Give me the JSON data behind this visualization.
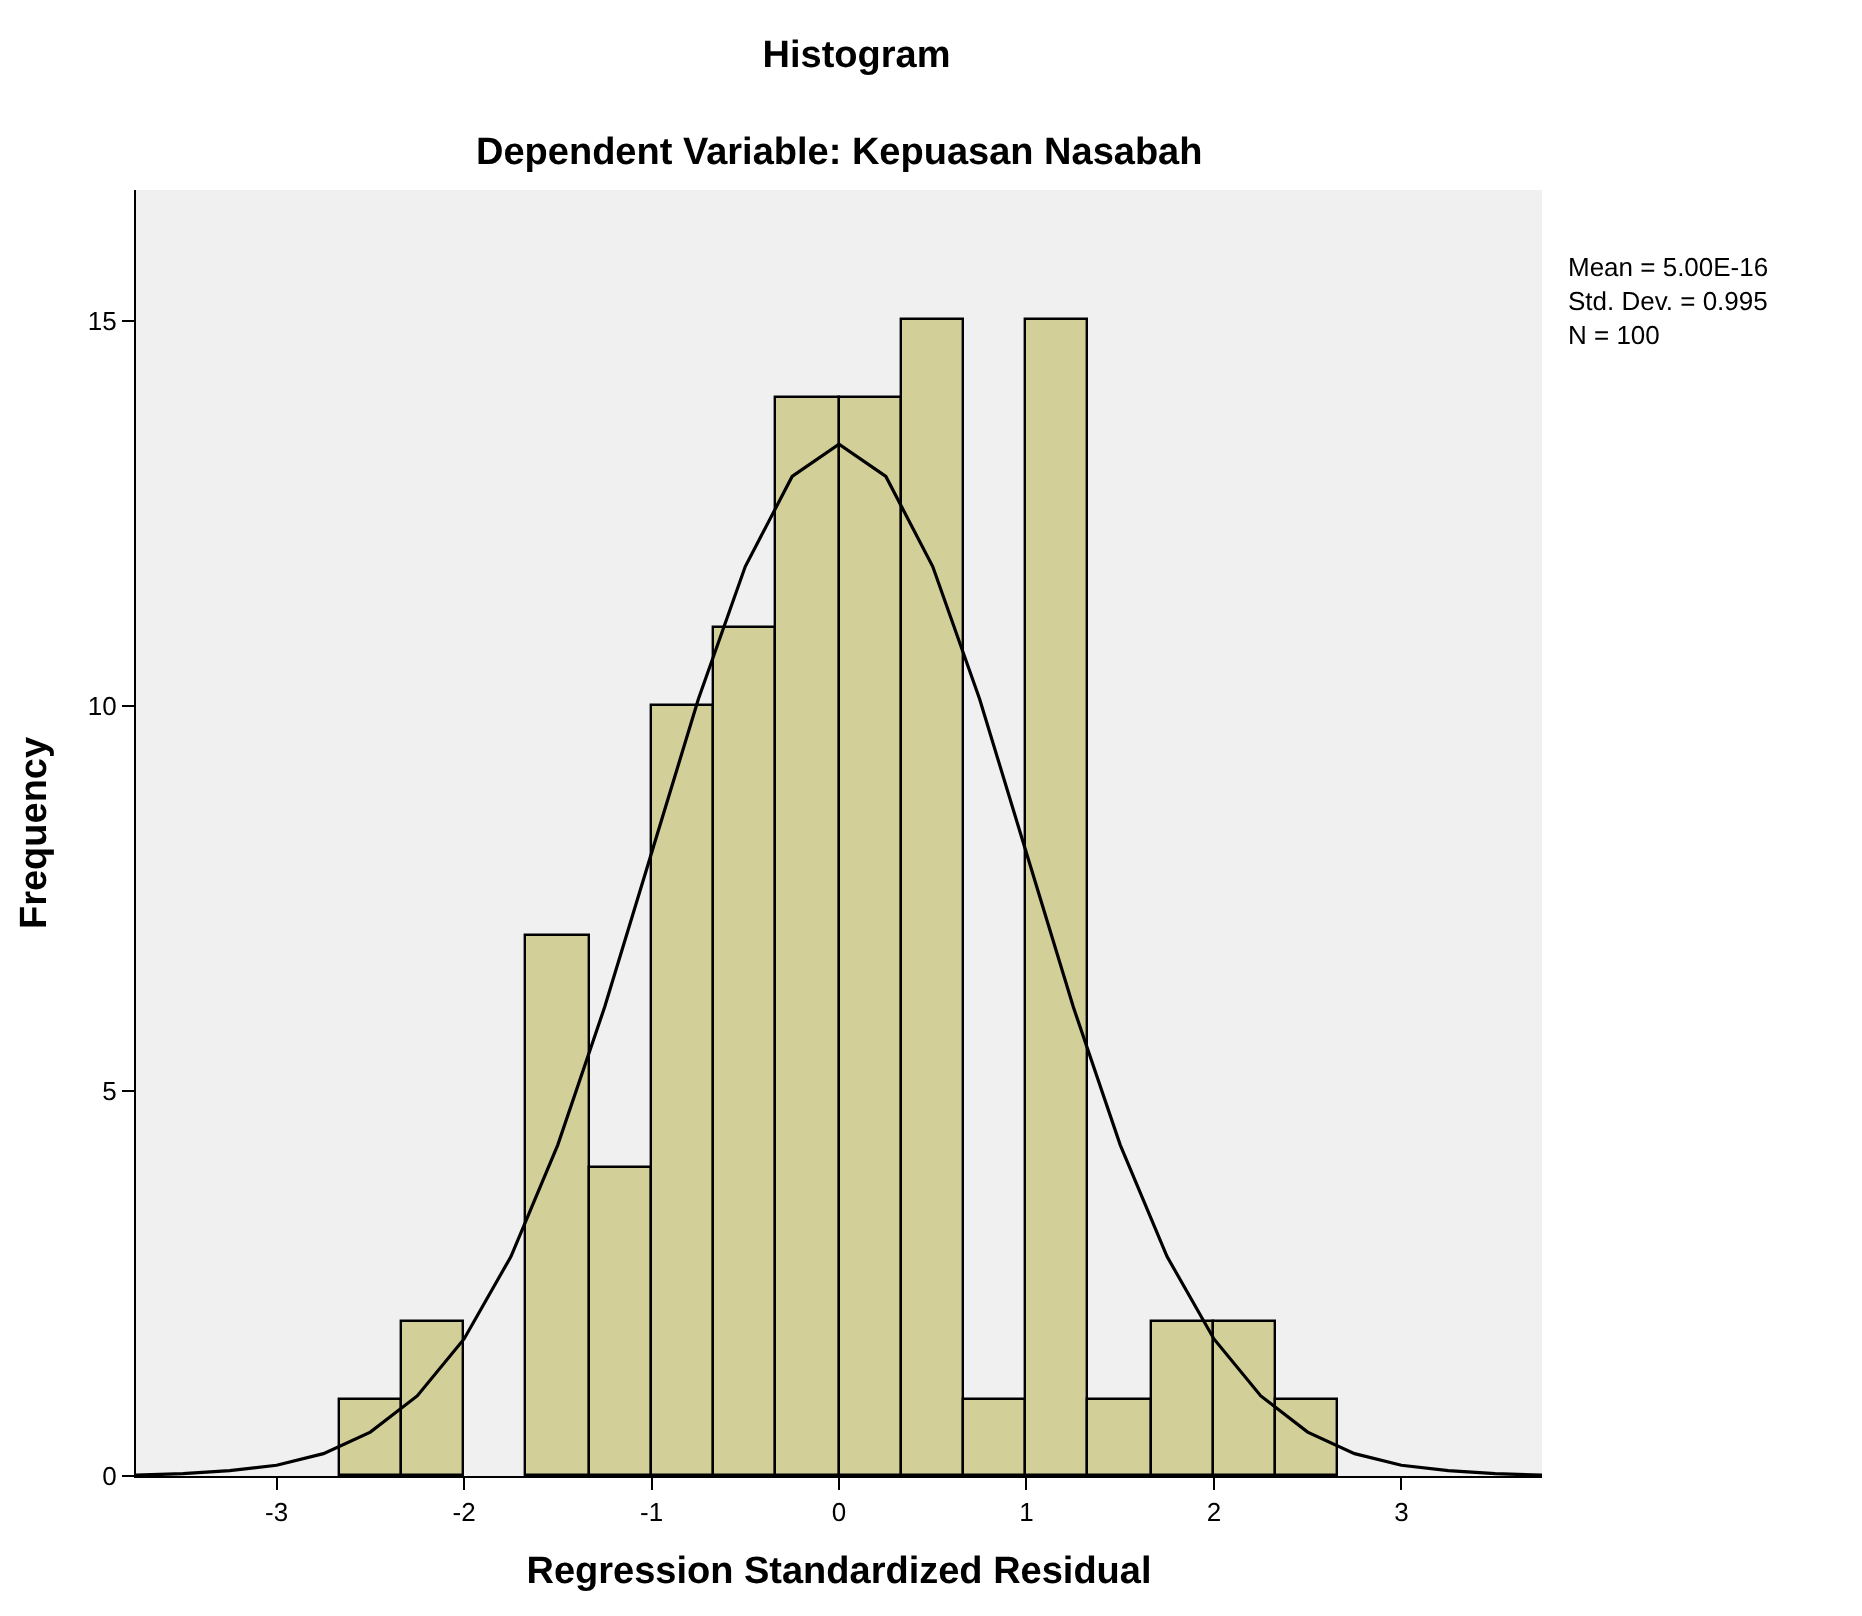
{
  "chart_data": {
    "type": "histogram",
    "title": "Histogram",
    "subtitle": "Dependent Variable: Kepuasan Nasabah",
    "xlabel": "Regression Standardized Residual",
    "ylabel": "Frequency",
    "bins": [
      -2.667,
      -2.333,
      -2.0,
      -1.667,
      -1.333,
      -1.0,
      -0.667,
      -0.333,
      0.0,
      0.333,
      0.667,
      1.0,
      1.333,
      1.667,
      2.0,
      2.333,
      2.667
    ],
    "values": [
      1,
      2,
      0,
      7,
      4,
      10,
      11,
      14,
      14,
      15,
      1,
      15,
      1,
      2,
      2,
      1
    ],
    "color": "#d3cf98",
    "series": [
      {
        "type": "line",
        "color": "#000000",
        "x": [
          -3.75,
          -3.5,
          -3.25,
          -3.0,
          -2.75,
          -2.5,
          -2.25,
          -2.0,
          -1.75,
          -1.5,
          -1.25,
          -1.0,
          -0.75,
          -0.5,
          -0.25,
          0.0,
          0.25,
          0.5,
          0.75,
          1.0,
          1.25,
          1.5,
          1.75,
          2.0,
          2.25,
          2.5,
          2.75,
          3.0,
          3.25,
          3.5,
          3.75
        ],
        "values": [
          0.01,
          0.03,
          0.07,
          0.14,
          0.29,
          0.57,
          1.04,
          1.78,
          2.85,
          4.3,
          6.09,
          8.09,
          10.09,
          11.81,
          12.98,
          13.4,
          12.98,
          11.81,
          10.09,
          8.09,
          6.09,
          4.3,
          2.85,
          1.78,
          1.04,
          0.57,
          0.29,
          0.14,
          0.07,
          0.03,
          0.01
        ]
      }
    ],
    "xlim": [
      -3.75,
      3.75
    ],
    "xticks": [
      -3,
      -2,
      -1,
      0,
      1,
      2,
      3
    ],
    "ylim": [
      0,
      16.7
    ],
    "yticks": [
      0,
      5,
      10,
      15
    ],
    "grid": false,
    "annotations": [
      "Mean = 5.00E-16\nStd. Dev. = 0.995\nN = 100"
    ]
  }
}
